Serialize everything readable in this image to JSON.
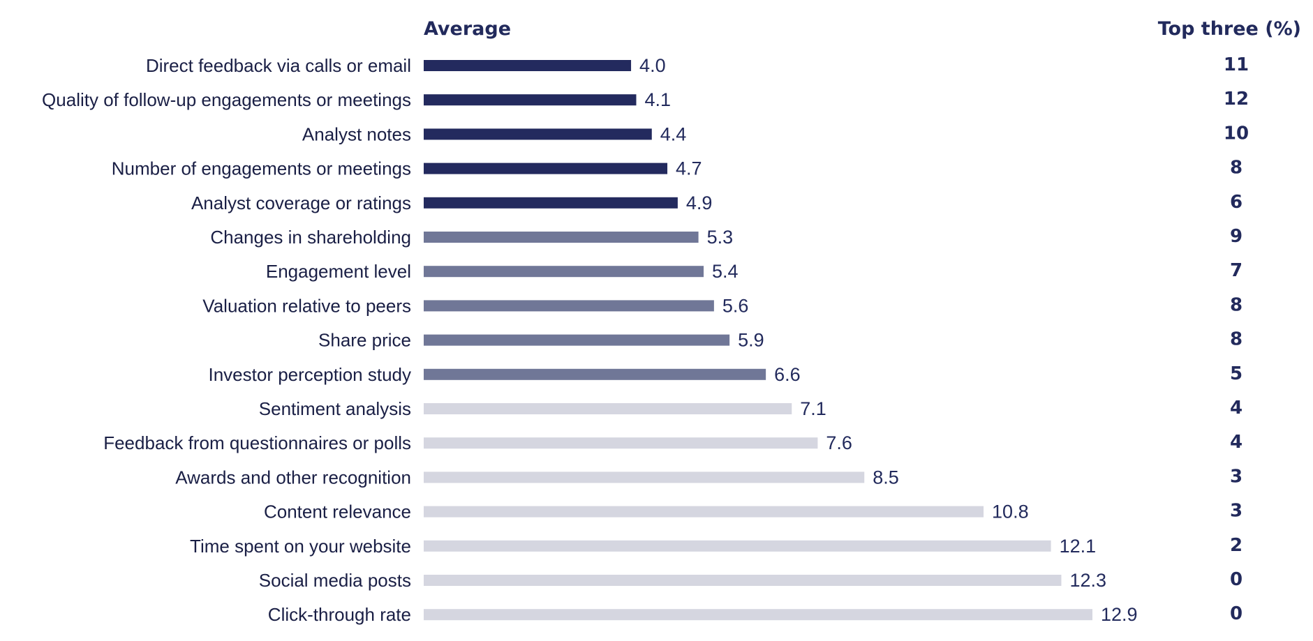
{
  "chart_data": {
    "type": "bar",
    "orientation": "horizontal",
    "headers": {
      "average": "Average",
      "top_three": "Top three (%)"
    },
    "categories": [
      "Direct feedback via calls or email",
      "Quality of follow-up engagements or meetings",
      "Analyst notes",
      "Number of engagements or meetings",
      "Analyst coverage or ratings",
      "Changes in shareholding",
      "Engagement level",
      "Valuation relative to peers",
      "Share price",
      "Investor perception study",
      "Sentiment analysis",
      "Feedback from questionnaires or polls",
      "Awards and other recognition",
      "Content relevance",
      "Time spent on your website",
      "Social media posts",
      "Click-through rate"
    ],
    "values": [
      4.0,
      4.1,
      4.4,
      4.7,
      4.9,
      5.3,
      5.4,
      5.6,
      5.9,
      6.6,
      7.1,
      7.6,
      8.5,
      10.8,
      12.1,
      12.3,
      12.9
    ],
    "value_labels": [
      "4.0",
      "4.1",
      "4.4",
      "4.7",
      "4.9",
      "5.3",
      "5.4",
      "5.6",
      "5.9",
      "6.6",
      "7.1",
      "7.6",
      "8.5",
      "10.8",
      "12.1",
      "12.3",
      "12.9"
    ],
    "top_three_pct": [
      "11",
      "12",
      "10",
      "8",
      "6",
      "9",
      "7",
      "8",
      "8",
      "5",
      "4",
      "4",
      "3",
      "3",
      "2",
      "0",
      "0"
    ],
    "tier": [
      1,
      1,
      1,
      1,
      1,
      2,
      2,
      2,
      2,
      2,
      3,
      3,
      3,
      3,
      3,
      3,
      3
    ],
    "tier_colors": {
      "1": "#232a5e",
      "2": "#707797",
      "3": "#d5d6e0"
    },
    "text_color": "#222a5c",
    "xlim": [
      0,
      12.9
    ],
    "grid": false,
    "legend": "none"
  }
}
